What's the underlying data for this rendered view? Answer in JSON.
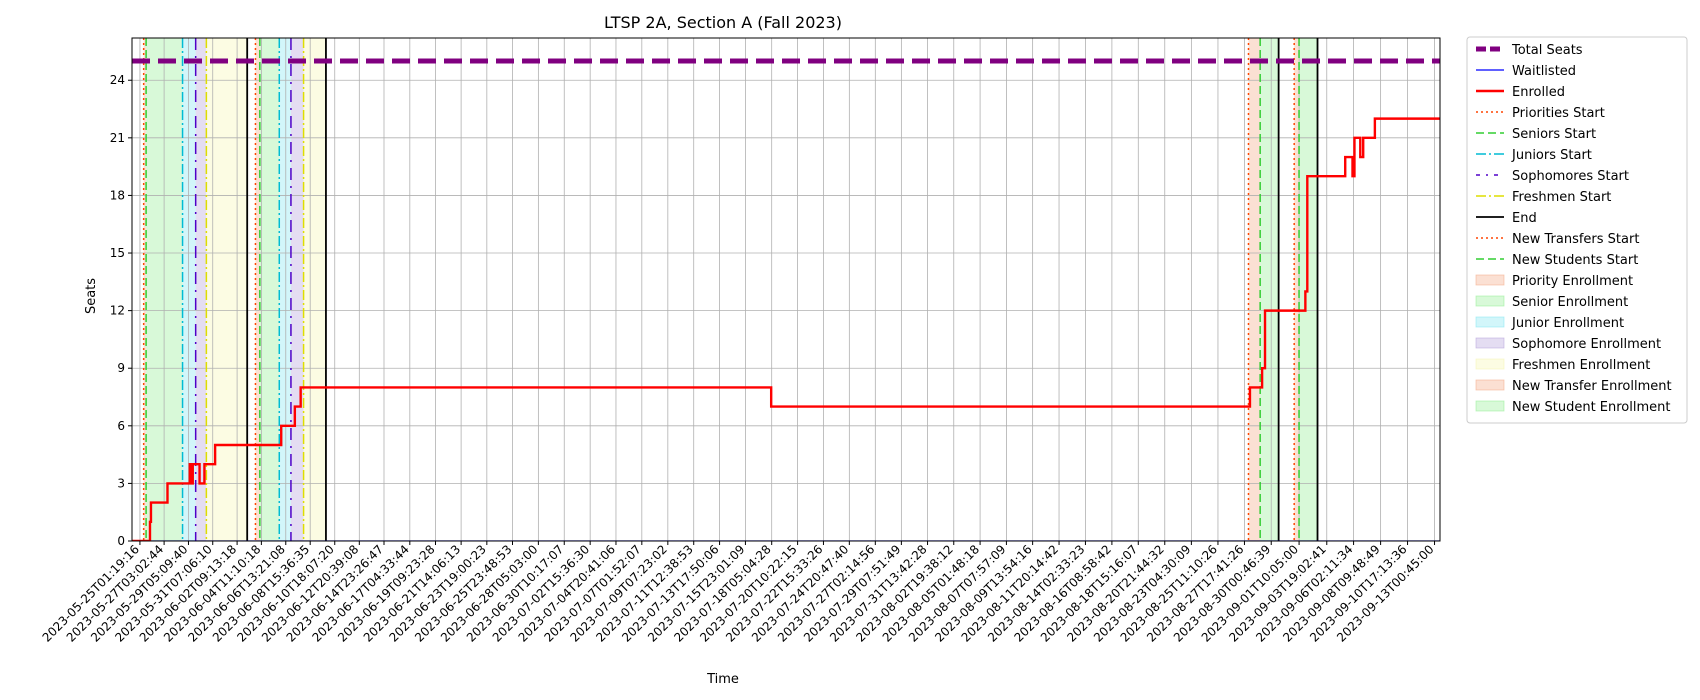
{
  "chart_data": {
    "type": "line",
    "title": "LTSP 2A, Section A (Fall 2023)",
    "xlabel": "Time",
    "ylabel": "Seats",
    "ylim": [
      0,
      26.2
    ],
    "yticks": [
      0,
      3,
      6,
      9,
      12,
      15,
      18,
      21,
      24
    ],
    "grid": true,
    "legend_position": "outside-right",
    "x_range": [
      "2023-05-24T09:00:00",
      "2023-09-13T12:00:00"
    ],
    "xtick_labels": [
      "2023-05-25T01:19:16",
      "2023-05-27T03:02:44",
      "2023-05-29T05:09:40",
      "2023-05-31T07:06:10",
      "2023-06-02T09:13:18",
      "2023-06-04T11:10:18",
      "2023-06-06T13:21:08",
      "2023-06-08T15:36:35",
      "2023-06-10T18:07:20",
      "2023-06-12T20:39:08",
      "2023-06-14T23:26:47",
      "2023-06-17T04:33:44",
      "2023-06-19T09:23:28",
      "2023-06-21T14:06:13",
      "2023-06-23T19:00:23",
      "2023-06-25T23:48:53",
      "2023-06-28T05:03:00",
      "2023-06-30T10:17:07",
      "2023-07-02T15:36:30",
      "2023-07-04T20:41:06",
      "2023-07-07T01:52:07",
      "2023-07-09T07:23:02",
      "2023-07-11T12:38:53",
      "2023-07-13T17:50:06",
      "2023-07-15T23:01:09",
      "2023-07-18T05:04:28",
      "2023-07-20T10:22:15",
      "2023-07-22T15:33:26",
      "2023-07-24T20:47:40",
      "2023-07-27T02:14:56",
      "2023-07-29T07:51:49",
      "2023-07-31T13:42:28",
      "2023-08-02T19:38:12",
      "2023-08-05T01:48:18",
      "2023-08-07T07:57:09",
      "2023-08-09T13:54:16",
      "2023-08-11T20:14:42",
      "2023-08-14T02:33:23",
      "2023-08-16T08:58:42",
      "2023-08-18T15:16:07",
      "2023-08-20T21:44:32",
      "2023-08-23T04:30:09",
      "2023-08-25T11:10:26",
      "2023-08-27T17:41:26",
      "2023-08-30T00:46:39",
      "2023-09-01T10:05:00",
      "2023-09-03T19:02:41",
      "2023-09-06T02:11:34",
      "2023-09-08T09:48:49",
      "2023-09-10T17:13:36",
      "2023-09-13T00:45:00"
    ],
    "series": [
      {
        "name": "Total Seats",
        "color": "#800080",
        "style": "dashed-thick",
        "points": [
          [
            "2023-05-24T09:00:00",
            25
          ],
          [
            "2023-09-13T12:00:00",
            25
          ]
        ]
      },
      {
        "name": "Waitlisted",
        "color": "#0000ff",
        "style": "solid-thin",
        "points": [
          [
            "2023-05-24T09:00:00",
            0
          ],
          [
            "2023-09-13T12:00:00",
            0
          ]
        ]
      },
      {
        "name": "Enrolled",
        "color": "#ff0000",
        "style": "step",
        "points": [
          [
            "2023-05-24T09:00:00",
            0
          ],
          [
            "2023-05-25T20:00:00",
            0
          ],
          [
            "2023-05-25T22:00:00",
            1
          ],
          [
            "2023-05-26T00:00:00",
            2
          ],
          [
            "2023-05-27T10:00:00",
            3
          ],
          [
            "2023-05-29T08:00:00",
            4
          ],
          [
            "2023-05-29T10:00:00",
            3
          ],
          [
            "2023-05-29T14:00:00",
            4
          ],
          [
            "2023-05-30T04:00:00",
            3
          ],
          [
            "2023-05-30T14:00:00",
            4
          ],
          [
            "2023-05-31T12:00:00",
            5
          ],
          [
            "2023-06-06T04:00:00",
            6
          ],
          [
            "2023-06-07T08:00:00",
            7
          ],
          [
            "2023-06-07T20:00:00",
            8
          ],
          [
            "2023-07-18T04:00:00",
            7
          ],
          [
            "2023-08-28T05:00:00",
            8
          ],
          [
            "2023-08-29T06:00:00",
            9
          ],
          [
            "2023-08-29T12:00:00",
            12
          ],
          [
            "2023-09-01T23:00:00",
            13
          ],
          [
            "2023-09-02T03:00:00",
            19
          ],
          [
            "2023-09-05T09:00:00",
            20
          ],
          [
            "2023-09-06T00:00:00",
            19
          ],
          [
            "2023-09-06T04:00:00",
            21
          ],
          [
            "2023-09-06T16:00:00",
            20
          ],
          [
            "2023-09-06T22:00:00",
            21
          ],
          [
            "2023-09-07T22:00:00",
            22
          ],
          [
            "2023-09-13T12:00:00",
            22
          ]
        ]
      }
    ],
    "vertical_lines": [
      {
        "name": "Priorities Start",
        "color": "#ff4500",
        "style": "dotted",
        "x": [
          "2023-05-25T09:00:00",
          "2023-06-03T23:00:00",
          "2023-08-28T02:00:00",
          "2023-09-01T00:00:00"
        ]
      },
      {
        "name": "Seniors Start",
        "color": "#32cd32",
        "style": "dashed",
        "x": [
          "2023-05-25T14:00:00",
          "2023-06-04T08:00:00",
          "2023-08-29T02:00:00",
          "2023-09-01T10:00:00"
        ]
      },
      {
        "name": "Juniors Start",
        "color": "#00bcd4",
        "style": "dashdot",
        "x": [
          "2023-05-28T17:00:00",
          "2023-06-06T00:00:00"
        ]
      },
      {
        "name": "Sophomores Start",
        "color": "#5000c8",
        "style": "dashdot-sparse",
        "x": [
          "2023-05-29T20:00:00",
          "2023-06-07T00:00:00"
        ]
      },
      {
        "name": "Freshmen Start",
        "color": "#dede00",
        "style": "dashdot",
        "x": [
          "2023-05-30T18:00:00",
          "2023-06-08T02:00:00"
        ]
      },
      {
        "name": "End",
        "color": "#000000",
        "style": "solid",
        "x": [
          "2023-06-03T06:00:00",
          "2023-06-10T00:00:00",
          "2023-08-30T16:00:00",
          "2023-09-03T00:00:00"
        ]
      },
      {
        "name": "New Transfers Start",
        "color": "#ff4500",
        "style": "dotted",
        "x": []
      },
      {
        "name": "New Students Start",
        "color": "#32cd32",
        "style": "dashed",
        "x": []
      }
    ],
    "shaded_regions": [
      {
        "name": "Priority Enrollment",
        "color": "#f4a582",
        "ranges": [
          [
            "2023-05-25T09:00:00",
            "2023-05-25T14:00:00"
          ],
          [
            "2023-06-03T23:00:00",
            "2023-06-04T08:00:00"
          ],
          [
            "2023-08-28T02:00:00",
            "2023-08-29T02:00:00"
          ]
        ]
      },
      {
        "name": "Senior Enrollment",
        "color": "#90ee90",
        "ranges": [
          [
            "2023-05-25T14:00:00",
            "2023-05-28T17:00:00"
          ],
          [
            "2023-06-04T08:00:00",
            "2023-06-06T00:00:00"
          ],
          [
            "2023-08-29T02:00:00",
            "2023-08-30T16:00:00"
          ]
        ]
      },
      {
        "name": "Junior Enrollment",
        "color": "#7fe6f0",
        "ranges": [
          [
            "2023-05-28T17:00:00",
            "2023-05-29T20:00:00"
          ],
          [
            "2023-06-06T00:00:00",
            "2023-06-07T00:00:00"
          ]
        ]
      },
      {
        "name": "Sophomore Enrollment",
        "color": "#b39ddb",
        "ranges": [
          [
            "2023-05-29T20:00:00",
            "2023-05-30T18:00:00"
          ],
          [
            "2023-06-07T00:00:00",
            "2023-06-08T02:00:00"
          ]
        ]
      },
      {
        "name": "Freshmen Enrollment",
        "color": "#f5f5b0",
        "ranges": [
          [
            "2023-05-30T18:00:00",
            "2023-06-03T06:00:00"
          ],
          [
            "2023-06-08T02:00:00",
            "2023-06-10T00:00:00"
          ]
        ]
      },
      {
        "name": "New Transfer Enrollment",
        "color": "#f4a582",
        "ranges": [
          [
            "2023-09-01T00:00:00",
            "2023-09-01T10:00:00"
          ]
        ]
      },
      {
        "name": "New Student Enrollment",
        "color": "#90ee90",
        "ranges": [
          [
            "2023-09-01T10:00:00",
            "2023-09-03T00:00:00"
          ]
        ]
      }
    ]
  }
}
